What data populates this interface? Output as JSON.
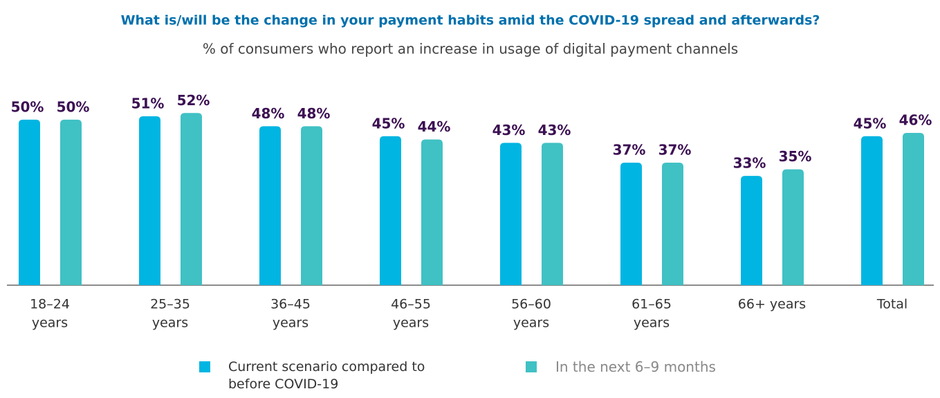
{
  "chart_data": {
    "type": "bar",
    "title": "What is/will be the change in your payment habits amid the COVID-19 spread and afterwards?",
    "subtitle": "% of consumers who report an increase in usage of digital payment channels",
    "categories": [
      [
        "18–24",
        "years"
      ],
      [
        "25–35",
        "years"
      ],
      [
        "36–45",
        "years"
      ],
      [
        "46–55",
        "years"
      ],
      [
        "56–60",
        "years"
      ],
      [
        "61–65",
        "years"
      ],
      [
        "66+ years"
      ],
      [
        "Total"
      ]
    ],
    "series": [
      {
        "name": "Current scenario compared to before COVID-19",
        "color": "#00b5e2",
        "values": [
          50,
          51,
          48,
          45,
          43,
          37,
          33,
          45
        ],
        "value_labels": [
          "50%",
          "51%",
          "48%",
          "45%",
          "43%",
          "37%",
          "33%",
          "45%"
        ]
      },
      {
        "name": "In the next 6–9 months",
        "color": "#40c1c4",
        "values": [
          50,
          52,
          48,
          44,
          43,
          37,
          35,
          46
        ],
        "value_labels": [
          "50%",
          "52%",
          "48%",
          "44%",
          "43%",
          "37%",
          "35%",
          "46%"
        ]
      }
    ],
    "ylim": [
      0,
      60
    ]
  }
}
